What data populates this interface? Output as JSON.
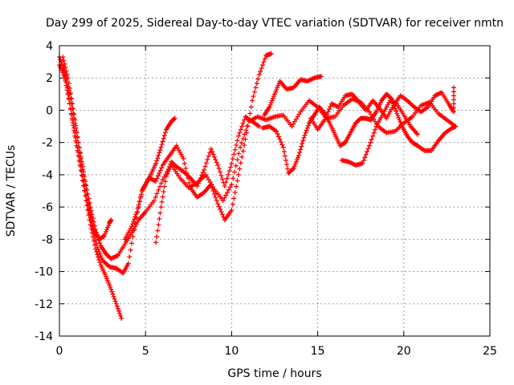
{
  "chart_data": {
    "type": "scatter",
    "title": "Day 299 of 2025, Sidereal Day-to-day VTEC variation (SDTVAR) for receiver nmtn",
    "xlabel": "GPS time / hours",
    "ylabel": "SDTVAR / TECUs",
    "xlim": [
      0,
      25
    ],
    "ylim": [
      -14,
      4
    ],
    "x_ticks": [
      "0",
      "5",
      "10",
      "15",
      "20",
      "25"
    ],
    "y_ticks": [
      "4",
      "2",
      "0",
      "-2",
      "-4",
      "-6",
      "-8",
      "-10",
      "-12",
      "-14"
    ],
    "grid": true,
    "legend": "none",
    "marker": "+",
    "color": "#ff0000",
    "series": [
      {
        "points": [
          [
            0.0,
            3.3
          ],
          [
            0.3,
            2.4
          ],
          [
            0.6,
            1.0
          ],
          [
            0.9,
            -0.8
          ],
          [
            1.2,
            -2.6
          ],
          [
            1.5,
            -4.4
          ],
          [
            1.8,
            -6.0
          ],
          [
            2.1,
            -7.4
          ],
          [
            2.4,
            -8.4
          ],
          [
            2.7,
            -8.9
          ],
          [
            3.0,
            -9.2
          ],
          [
            3.4,
            -9.0
          ],
          [
            3.8,
            -8.3
          ],
          [
            4.2,
            -7.6
          ],
          [
            4.6,
            -6.8
          ],
          [
            5.0,
            -6.3
          ],
          [
            5.5,
            -5.6
          ],
          [
            6.0,
            -4.3
          ],
          [
            6.5,
            -3.4
          ],
          [
            7.0,
            -4.2
          ],
          [
            7.5,
            -4.8
          ],
          [
            8.0,
            -4.5
          ],
          [
            8.5,
            -4.0
          ],
          [
            9.0,
            -4.9
          ],
          [
            9.5,
            -5.6
          ],
          [
            10.0,
            -4.6
          ],
          [
            10.5,
            -2.3
          ],
          [
            11.0,
            -0.7
          ],
          [
            11.5,
            -0.4
          ],
          [
            12.0,
            -0.6
          ],
          [
            12.5,
            -0.4
          ],
          [
            13.0,
            -0.3
          ],
          [
            13.5,
            -1.0
          ],
          [
            14.0,
            -0.1
          ],
          [
            14.5,
            0.6
          ],
          [
            15.0,
            0.2
          ],
          [
            15.5,
            -0.5
          ],
          [
            16.0,
            -0.4
          ],
          [
            16.5,
            0.3
          ],
          [
            17.0,
            0.7
          ],
          [
            17.5,
            0.5
          ],
          [
            18.0,
            -0.1
          ],
          [
            18.5,
            -1.0
          ],
          [
            19.0,
            -1.4
          ],
          [
            19.5,
            -1.3
          ],
          [
            20.0,
            -0.8
          ],
          [
            20.5,
            -0.4
          ],
          [
            21.0,
            0.3
          ],
          [
            21.5,
            0.5
          ],
          [
            22.0,
            -0.2
          ],
          [
            22.5,
            -0.6
          ],
          [
            23.0,
            -1.0
          ]
        ]
      },
      {
        "points": [
          [
            0.1,
            3.0
          ],
          [
            0.4,
            1.7
          ],
          [
            0.7,
            -0.2
          ],
          [
            1.0,
            -2.0
          ],
          [
            1.3,
            -3.8
          ],
          [
            1.6,
            -5.6
          ],
          [
            1.9,
            -7.2
          ],
          [
            2.2,
            -8.5
          ],
          [
            2.5,
            -9.3
          ],
          [
            2.9,
            -9.7
          ],
          [
            3.3,
            -9.8
          ],
          [
            3.7,
            -10.1
          ],
          [
            4.0,
            -9.5
          ],
          [
            4.4,
            -7.0
          ],
          [
            4.8,
            -5.0
          ],
          [
            5.2,
            -4.2
          ],
          [
            5.6,
            -4.4
          ],
          [
            6.0,
            -3.4
          ],
          [
            6.4,
            -2.8
          ],
          [
            6.8,
            -2.2
          ],
          [
            7.2,
            -3.0
          ],
          [
            7.6,
            -4.8
          ],
          [
            8.0,
            -5.4
          ],
          [
            8.4,
            -5.1
          ],
          [
            8.8,
            -4.6
          ],
          [
            9.2,
            -5.8
          ],
          [
            9.6,
            -6.8
          ],
          [
            10.0,
            -6.2
          ],
          [
            10.4,
            -4.0
          ],
          [
            10.8,
            -1.8
          ],
          [
            11.2,
            0.6
          ],
          [
            11.6,
            2.2
          ],
          [
            12.0,
            3.4
          ],
          [
            12.3,
            3.5
          ]
        ]
      },
      {
        "points": [
          [
            0.0,
            2.8
          ],
          [
            0.3,
            2.1
          ],
          [
            0.6,
            0.4
          ],
          [
            0.9,
            -1.6
          ],
          [
            1.2,
            -3.4
          ],
          [
            1.5,
            -5.3
          ],
          [
            1.8,
            -7.1
          ],
          [
            2.1,
            -8.6
          ],
          [
            2.4,
            -9.6
          ],
          [
            2.7,
            -10.3
          ],
          [
            3.0,
            -11.1
          ],
          [
            3.3,
            -12.0
          ],
          [
            3.6,
            -12.9
          ]
        ]
      },
      {
        "points": [
          [
            0.2,
            3.3
          ],
          [
            0.5,
            2.0
          ],
          [
            0.8,
            0.1
          ],
          [
            1.1,
            -2.0
          ],
          [
            1.4,
            -4.0
          ],
          [
            1.7,
            -5.8
          ],
          [
            2.0,
            -7.4
          ],
          [
            2.3,
            -8.0
          ],
          [
            2.6,
            -7.8
          ],
          [
            2.9,
            -7.0
          ],
          [
            3.0,
            -6.8
          ]
        ]
      },
      {
        "points": [
          [
            3.8,
            -8.0
          ],
          [
            4.2,
            -7.2
          ],
          [
            4.5,
            -6.3
          ],
          [
            4.8,
            -5.0
          ],
          [
            5.0,
            -4.6
          ],
          [
            5.3,
            -4.0
          ],
          [
            5.6,
            -3.3
          ],
          [
            5.9,
            -2.3
          ],
          [
            6.2,
            -1.2
          ],
          [
            6.5,
            -0.7
          ],
          [
            6.7,
            -0.5
          ]
        ]
      },
      {
        "points": [
          [
            5.6,
            -8.2
          ],
          [
            5.9,
            -6.0
          ],
          [
            6.2,
            -4.1
          ],
          [
            6.5,
            -3.2
          ],
          [
            6.8,
            -3.5
          ],
          [
            7.2,
            -3.8
          ],
          [
            7.6,
            -4.2
          ],
          [
            8.0,
            -4.7
          ],
          [
            8.4,
            -3.7
          ],
          [
            8.8,
            -2.4
          ],
          [
            9.2,
            -3.4
          ],
          [
            9.6,
            -4.7
          ],
          [
            10.0,
            -3.3
          ],
          [
            10.4,
            -1.6
          ],
          [
            10.8,
            -0.4
          ],
          [
            11.2,
            -0.7
          ],
          [
            11.6,
            -1.0
          ]
        ]
      },
      {
        "points": [
          [
            11.8,
            -1.1
          ],
          [
            12.2,
            -1.0
          ],
          [
            12.6,
            -1.3
          ],
          [
            13.0,
            -2.3
          ],
          [
            13.3,
            -3.9
          ],
          [
            13.6,
            -3.6
          ],
          [
            13.9,
            -2.8
          ],
          [
            14.2,
            -1.7
          ],
          [
            14.5,
            -0.8
          ],
          [
            14.8,
            -0.3
          ],
          [
            15.1,
            0.2
          ],
          [
            15.4,
            -0.2
          ],
          [
            15.7,
            -0.8
          ],
          [
            16.0,
            -1.5
          ],
          [
            16.3,
            -2.2
          ],
          [
            16.6,
            -2.0
          ],
          [
            16.9,
            -1.4
          ],
          [
            17.2,
            -0.8
          ],
          [
            17.5,
            -0.5
          ],
          [
            17.8,
            -0.5
          ],
          [
            18.1,
            -0.6
          ],
          [
            18.4,
            -0.1
          ],
          [
            18.7,
            0.6
          ],
          [
            19.0,
            1.0
          ],
          [
            19.3,
            0.7
          ],
          [
            19.6,
            -0.2
          ],
          [
            19.9,
            -1.0
          ],
          [
            20.2,
            -1.6
          ],
          [
            20.5,
            -2.0
          ],
          [
            20.8,
            -2.2
          ],
          [
            21.2,
            -2.5
          ],
          [
            21.6,
            -2.5
          ],
          [
            22.0,
            -1.9
          ],
          [
            22.4,
            -1.4
          ],
          [
            22.8,
            -1.1
          ],
          [
            23.0,
            -1.0
          ]
        ]
      },
      {
        "points": [
          [
            11.9,
            -0.3
          ],
          [
            12.2,
            0.2
          ],
          [
            12.5,
            1.0
          ],
          [
            12.8,
            1.8
          ],
          [
            13.2,
            1.3
          ],
          [
            13.6,
            1.4
          ],
          [
            14.0,
            1.9
          ],
          [
            14.4,
            1.8
          ],
          [
            14.8,
            2.0
          ],
          [
            15.2,
            2.1
          ]
        ]
      },
      {
        "points": [
          [
            16.4,
            -3.1
          ],
          [
            16.8,
            -3.2
          ],
          [
            17.2,
            -3.4
          ],
          [
            17.6,
            -3.3
          ],
          [
            18.0,
            -2.2
          ],
          [
            18.4,
            -1.0
          ],
          [
            18.8,
            -0.2
          ],
          [
            19.2,
            0.6
          ],
          [
            19.6,
            0.4
          ],
          [
            20.0,
            -0.3
          ],
          [
            20.4,
            -1.0
          ],
          [
            20.8,
            -1.5
          ]
        ]
      },
      {
        "points": [
          [
            14.6,
            -0.5
          ],
          [
            15.0,
            -1.2
          ],
          [
            15.4,
            -0.6
          ],
          [
            15.8,
            0.4
          ],
          [
            16.2,
            0.2
          ],
          [
            16.6,
            0.9
          ],
          [
            17.0,
            1.0
          ],
          [
            17.4,
            0.5
          ],
          [
            17.8,
            0.0
          ],
          [
            18.2,
            0.6
          ],
          [
            18.6,
            0.1
          ],
          [
            19.0,
            -0.5
          ],
          [
            19.4,
            0.3
          ],
          [
            19.8,
            0.9
          ],
          [
            20.2,
            0.6
          ],
          [
            20.6,
            0.2
          ],
          [
            21.0,
            -0.1
          ],
          [
            21.4,
            0.2
          ],
          [
            21.8,
            0.9
          ],
          [
            22.2,
            1.1
          ],
          [
            22.6,
            0.4
          ],
          [
            22.9,
            -0.1
          ],
          [
            22.9,
            1.4
          ]
        ]
      }
    ]
  }
}
